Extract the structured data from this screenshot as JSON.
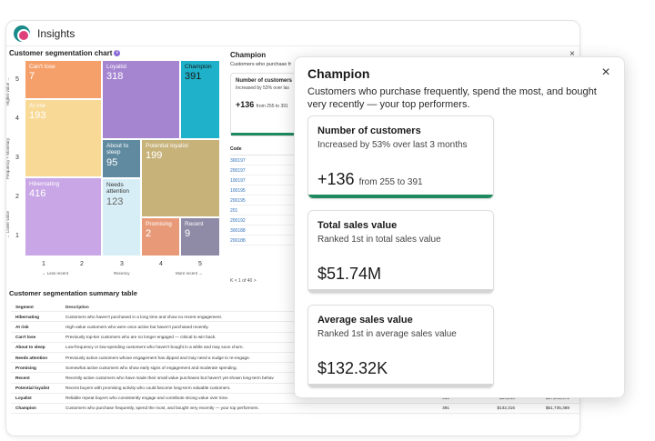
{
  "app": {
    "title": "Insights"
  },
  "chart_section": {
    "title": "Customer segmentation chart"
  },
  "chart_data": {
    "type": "heatmap",
    "title": "Customer segmentation chart",
    "xlabel": "Recency",
    "ylabel": "Frequency + Monetary",
    "x_ticks": [
      "1",
      "2",
      "3",
      "4",
      "5"
    ],
    "y_ticks": [
      "5",
      "4",
      "3",
      "2",
      "1"
    ],
    "x_note_left": "← Less recent",
    "x_note_right": "More recent →",
    "y_note_top": "Higher value →",
    "y_note_bottom": "← Lower value",
    "segments": [
      {
        "name": "Can't lose",
        "value": 7,
        "color": "#f5a06a"
      },
      {
        "name": "At risk",
        "value": 193,
        "color": "#f8d996"
      },
      {
        "name": "Hibernating",
        "value": 416,
        "color": "#c9a7e6"
      },
      {
        "name": "Loyalist",
        "value": 318,
        "color": "#a585d0"
      },
      {
        "name": "Champion",
        "value": 391,
        "color": "#1eb1c9"
      },
      {
        "name": "About to sleep",
        "value": 95,
        "color": "#5f8aa0"
      },
      {
        "name": "Needs attention",
        "value": 123,
        "color": "#d8eef6"
      },
      {
        "name": "Potential loyalist",
        "value": 199,
        "color": "#c7b27a"
      },
      {
        "name": "Promising",
        "value": 2,
        "color": "#e89a78"
      },
      {
        "name": "Recent",
        "value": 9,
        "color": "#8f8aa6"
      }
    ]
  },
  "middle": {
    "title": "Champion",
    "subtitle": "Customers who purchase fr",
    "card": {
      "title": "Number of customers",
      "sub": "Increased by 53% over las",
      "value": "+136",
      "value_sub": "from 255 to 391"
    },
    "code_header": "Code",
    "codes": [
      "300197",
      "200197",
      "100197",
      "100195",
      "200195",
      "201",
      "200192",
      "300188",
      "200188"
    ],
    "pager": "K  <  1 of 40  >"
  },
  "summary": {
    "title": "Customer segmentation summary table",
    "headers": [
      "Segment",
      "Description",
      "",
      "",
      ""
    ],
    "rows": [
      {
        "seg": "Hibernating",
        "desc": "Customers who haven't purchased in a long time and show no recent engagement.",
        "n": "",
        "avg": "",
        "total": ""
      },
      {
        "seg": "At risk",
        "desc": "High-value customers who were once active but haven't purchased recently.",
        "n": "",
        "avg": "",
        "total": ""
      },
      {
        "seg": "Can't lose",
        "desc": "Previously top-tier customers who are no longer engaged — critical to win back.",
        "n": "",
        "avg": "",
        "total": ""
      },
      {
        "seg": "About to sleep",
        "desc": "Low-frequency or low-spending customers who haven't bought in a while and may soon churn.",
        "n": "",
        "avg": "",
        "total": ""
      },
      {
        "seg": "Needs attention",
        "desc": "Previously active customers whose engagement has dipped and may need a nudge to re-engage.",
        "n": "",
        "avg": "",
        "total": ""
      },
      {
        "seg": "Promising",
        "desc": "Somewhat active customers who show early signs of engagement and moderate spending.",
        "n": "",
        "avg": "",
        "total": ""
      },
      {
        "seg": "Recent",
        "desc": "Recently active customers who have made their small value purchases but haven't yet shown long-term behav",
        "n": "",
        "avg": "",
        "total": ""
      },
      {
        "seg": "Potential loyalist",
        "desc": "Recent buyers with promising activity who could become long-term valuable customers.",
        "n": "199",
        "avg": "$9,912",
        "total": "$1,972,445"
      },
      {
        "seg": "Loyalist",
        "desc": "Reliable repeat buyers who consistently engage and contribute strong value over time.",
        "n": "318",
        "avg": "$54,218",
        "total": "$17,241,472"
      },
      {
        "seg": "Champion",
        "desc": "Customers who purchase frequently, spend the most, and bought very recently — your top performers.",
        "n": "391",
        "avg": "$132,316",
        "total": "$51,735,389"
      }
    ]
  },
  "panel": {
    "title": "Champion",
    "description": "Customers who purchase frequently, spend the most, and bought very recently — your top performers.",
    "cards": [
      {
        "title": "Number of customers",
        "sub": "Increased by 53% over last 3 months",
        "value": "+136",
        "value_sub": "from 255 to 391",
        "bar_color": "#1f8a5f"
      },
      {
        "title": "Total sales value",
        "sub": "Ranked 1st in total sales value",
        "value": "$51.74M",
        "value_sub": "",
        "bar_color": "#d6d6d6"
      },
      {
        "title": "Average sales value",
        "sub": "Ranked 1st in average sales value",
        "value": "$132.32K",
        "value_sub": "",
        "bar_color": "#d6d6d6"
      }
    ]
  }
}
